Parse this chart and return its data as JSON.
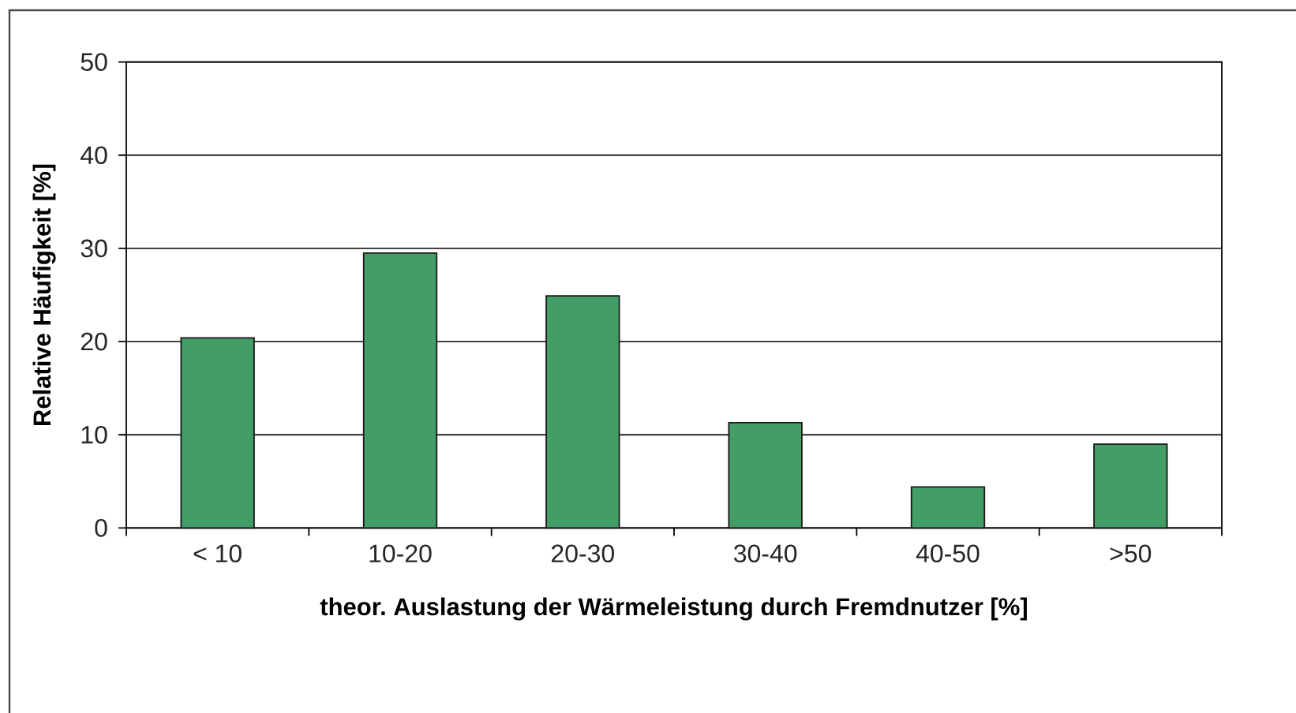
{
  "chart_data": {
    "type": "bar",
    "categories": [
      "< 10",
      "10-20",
      "20-30",
      "30-40",
      "40-50",
      ">50"
    ],
    "values": [
      20.4,
      29.5,
      24.9,
      11.3,
      4.4,
      9.0
    ],
    "color": "#439d66",
    "xlabel": "theor. Auslastung der Wärmeleistung durch Fremdnutzer [%]",
    "ylabel": "Relative Häufigkeit [%]",
    "ylim": [
      0,
      50
    ],
    "yticks": [
      0,
      10,
      20,
      30,
      40,
      50
    ],
    "grid": "y"
  }
}
